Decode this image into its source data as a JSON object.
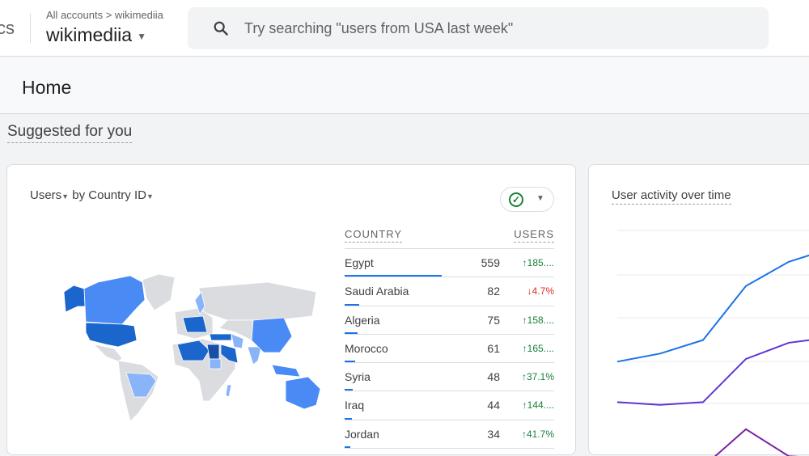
{
  "header": {
    "brand_fragment": "cs",
    "breadcrumb": "All accounts > wikimediia",
    "account": "wikimediia",
    "search_placeholder": "Try searching \"users from USA last week\""
  },
  "page": {
    "title": "Home",
    "section": "Suggested for you"
  },
  "map_card": {
    "metric": "Users",
    "dimension": "by Country ID",
    "columns": [
      "COUNTRY",
      "USERS"
    ],
    "rows": [
      {
        "country": "Egypt",
        "users": 559,
        "change": "185....",
        "dir": "up",
        "share": 1.0
      },
      {
        "country": "Saudi Arabia",
        "users": 82,
        "change": "4.7%",
        "dir": "down",
        "share": 0.147
      },
      {
        "country": "Algeria",
        "users": 75,
        "change": "158....",
        "dir": "up",
        "share": 0.134
      },
      {
        "country": "Morocco",
        "users": 61,
        "change": "165....",
        "dir": "up",
        "share": 0.109
      },
      {
        "country": "Syria",
        "users": 48,
        "change": "37.1%",
        "dir": "up",
        "share": 0.086
      },
      {
        "country": "Iraq",
        "users": 44,
        "change": "144....",
        "dir": "up",
        "share": 0.079
      },
      {
        "country": "Jordan",
        "users": 34,
        "change": "41.7%",
        "dir": "up",
        "share": 0.061
      }
    ],
    "colors": {
      "darkest": "#174ea6",
      "dark": "#1a66cc",
      "medium": "#4a8af4",
      "light": "#8ab4f8",
      "none": "#dadce0"
    }
  },
  "activity_card": {
    "title": "User activity over time"
  },
  "chart_data": {
    "type": "line",
    "title": "User activity over time",
    "grid": true,
    "series": [
      {
        "color": "#1a73e8",
        "values": [
          52,
          55,
          60,
          80,
          89,
          94
        ]
      },
      {
        "color": "#5e35d6",
        "values": [
          37,
          36,
          37,
          53,
          59,
          61
        ]
      },
      {
        "color": "#7b1fa2",
        "values": [
          12,
          12,
          13,
          27,
          17,
          16
        ]
      }
    ]
  }
}
